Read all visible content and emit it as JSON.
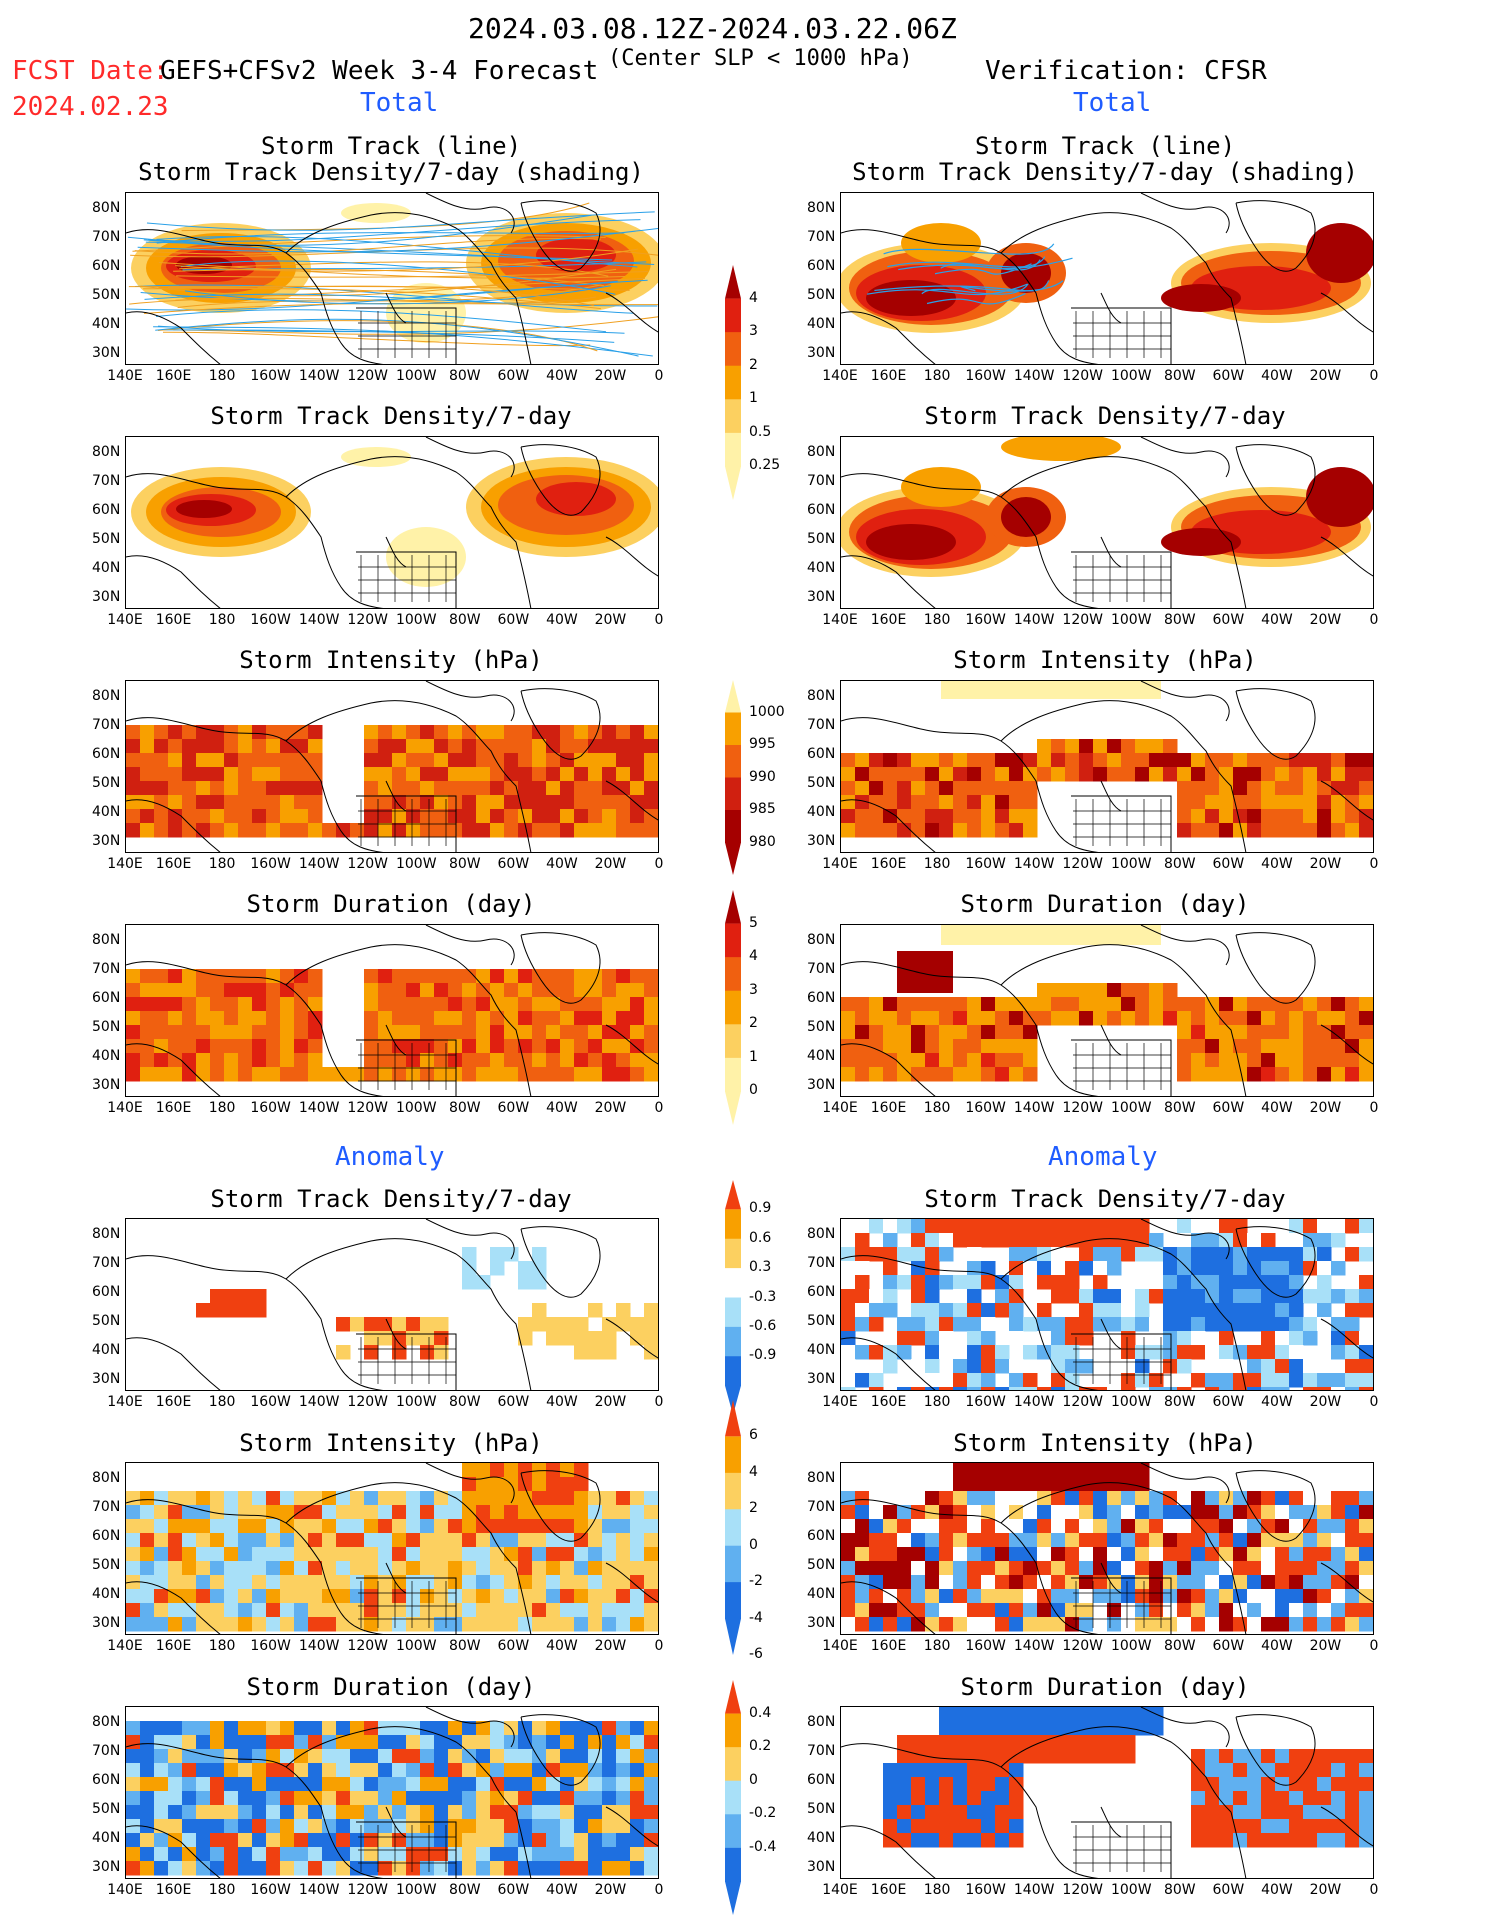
{
  "header": {
    "period": "2024.03.08.12Z-2024.03.22.06Z",
    "fcst_date_label": "FCST Date:",
    "fcst_date": "2024.02.23",
    "model": "GEFS+CFSv2 Week 3-4 Forecast",
    "criterion": "(Center SLP < 1000 hPa)",
    "verification": "Verification: CFSR"
  },
  "sections": {
    "total_left": "Total",
    "total_right": "Total",
    "anomaly_left": "Anomaly",
    "anomaly_right": "Anomaly"
  },
  "panel_titles": {
    "row1_line": "Storm Track (line)",
    "row1_shade": "Storm Track Density/7-day (shading)",
    "density": "Storm Track Density/7-day",
    "intensity": "Storm Intensity (hPa)",
    "duration": "Storm Duration (day)"
  },
  "axes": {
    "lat_labels": [
      "80N",
      "70N",
      "60N",
      "50N",
      "40N",
      "30N"
    ],
    "lon_labels": [
      "140E",
      "160E",
      "180",
      "160W",
      "140W",
      "120W",
      "100W",
      "80W",
      "60W",
      "40W",
      "20W",
      "0"
    ]
  },
  "colorbars": {
    "density": {
      "labels": [
        "4",
        "3",
        "2",
        "1",
        "0.5",
        "0.25"
      ],
      "colors": [
        "#a50000",
        "#e02010",
        "#f06010",
        "#f8a000",
        "#fcd060",
        "#fff2a8"
      ]
    },
    "intensity": {
      "labels": [
        "1000",
        "995",
        "990",
        "985",
        "980"
      ],
      "colors": [
        "#fff2a8",
        "#f8a000",
        "#f06010",
        "#d02010",
        "#a50000"
      ]
    },
    "duration": {
      "labels": [
        "5",
        "4",
        "3",
        "2",
        "1",
        "0"
      ],
      "colors": [
        "#a50000",
        "#e02010",
        "#f06010",
        "#f8a000",
        "#fcd060",
        "#fff2a8"
      ]
    },
    "density_anom": {
      "labels": [
        "0.9",
        "0.6",
        "0.3",
        "-0.3",
        "-0.6",
        "-0.9"
      ],
      "colors": [
        "#f04010",
        "#f8a000",
        "#fcd060",
        "#ffffff",
        "#a8e0f8",
        "#60b0f0",
        "#1e6fe0"
      ]
    },
    "intensity_anom": {
      "labels": [
        "6",
        "4",
        "2",
        "0",
        "-2",
        "-4",
        "-6"
      ],
      "colors": [
        "#f04010",
        "#f8a000",
        "#fcd060",
        "#a8e0f8",
        "#60b0f0",
        "#1e6fe0"
      ]
    },
    "duration_anom": {
      "labels": [
        "0.4",
        "0.2",
        "0",
        "-0.2",
        "-0.4"
      ],
      "colors": [
        "#f04010",
        "#f8a000",
        "#fcd060",
        "#a8e0f8",
        "#60b0f0",
        "#1e6fe0"
      ]
    }
  }
}
